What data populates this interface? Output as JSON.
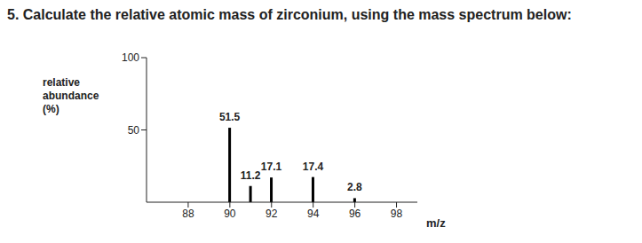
{
  "chart_data": {
    "type": "bar",
    "title": "5. Calculate the relative atomic mass of zirconium, using the mass spectrum below:",
    "x_label": "m/z",
    "y_label": "relative abundance (%)",
    "x": [
      90,
      91,
      92,
      94,
      96
    ],
    "values": [
      51.5,
      11.2,
      17.1,
      17.4,
      2.8
    ],
    "color": "#000000",
    "xlim": [
      86,
      99
    ],
    "xticks": [
      88,
      90,
      92,
      94,
      96,
      98
    ],
    "ylim": [
      0,
      100
    ],
    "yticks": [
      50,
      100
    ],
    "data_labels": true,
    "grid": false
  }
}
